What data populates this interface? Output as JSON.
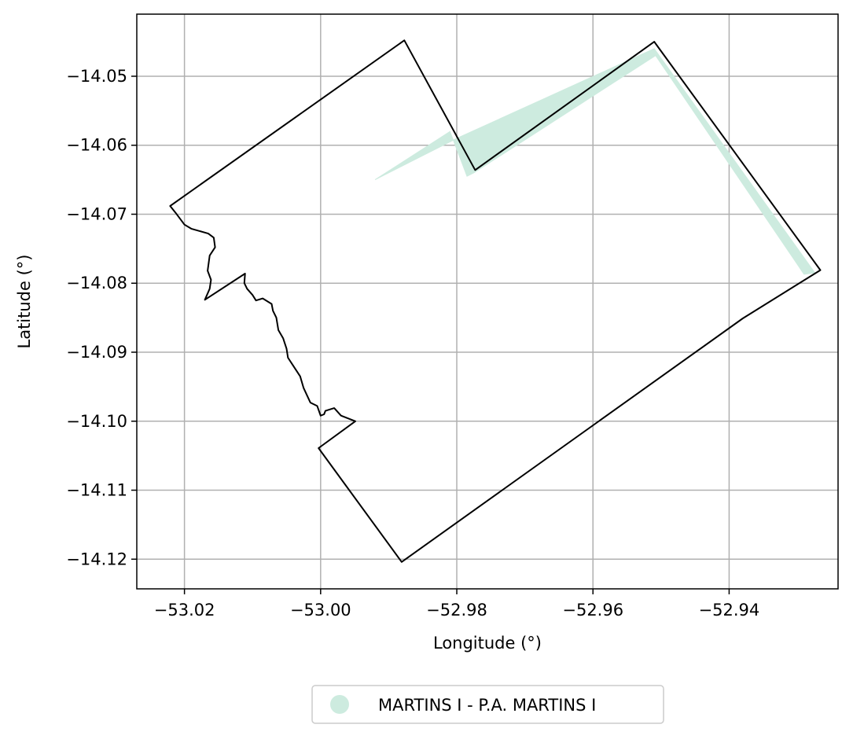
{
  "chart_data": {
    "type": "map",
    "xlabel": "Longitude (°)",
    "ylabel": "Latitude (°)",
    "xlim": [
      -53.027,
      -52.924
    ],
    "ylim": [
      -14.1243,
      -14.041
    ],
    "grid": true,
    "xticks": [
      {
        "value": -53.02,
        "label": "−53.02"
      },
      {
        "value": -53.0,
        "label": "−53.00"
      },
      {
        "value": -52.98,
        "label": "−52.98"
      },
      {
        "value": -52.96,
        "label": "−52.96"
      },
      {
        "value": -52.94,
        "label": "−52.94"
      }
    ],
    "yticks": [
      {
        "value": -14.05,
        "label": "−14.05"
      },
      {
        "value": -14.06,
        "label": "−14.06"
      },
      {
        "value": -14.07,
        "label": "−14.07"
      },
      {
        "value": -14.08,
        "label": "−14.08"
      },
      {
        "value": -14.09,
        "label": "−14.09"
      },
      {
        "value": -14.1,
        "label": "−14.10"
      },
      {
        "value": -14.11,
        "label": "−14.11"
      },
      {
        "value": -14.12,
        "label": "−14.12"
      }
    ],
    "legend": {
      "placement": "bottom-center",
      "entries": [
        {
          "label": "MARTINS I - P.A. MARTINS I",
          "color": "#cdebdf"
        }
      ]
    },
    "outline": {
      "color": "#000000",
      "coordinates": [
        [
          -52.9877,
          -14.0448
        ],
        [
          -52.9773,
          -14.0636
        ],
        [
          -52.951,
          -14.045
        ],
        [
          -52.9266,
          -14.0781
        ],
        [
          -52.938,
          -14.0851
        ],
        [
          -52.9881,
          -14.1204
        ],
        [
          -53.0003,
          -14.1039
        ],
        [
          -52.9949,
          -14.1
        ],
        [
          -52.997,
          -14.0992
        ],
        [
          -52.998,
          -14.0981
        ],
        [
          -52.9993,
          -14.0985
        ],
        [
          -52.9995,
          -14.099
        ],
        [
          -53.0,
          -14.0992
        ],
        [
          -53.0005,
          -14.0978
        ],
        [
          -53.0015,
          -14.0973
        ],
        [
          -53.0025,
          -14.0952
        ],
        [
          -53.003,
          -14.0935
        ],
        [
          -53.004,
          -14.092
        ],
        [
          -53.0048,
          -14.0908
        ],
        [
          -53.005,
          -14.0895
        ],
        [
          -53.0055,
          -14.088
        ],
        [
          -53.0062,
          -14.0868
        ],
        [
          -53.0065,
          -14.085
        ],
        [
          -53.007,
          -14.084
        ],
        [
          -53.0072,
          -14.083
        ],
        [
          -53.0085,
          -14.0822
        ],
        [
          -53.0095,
          -14.0825
        ],
        [
          -53.01,
          -14.0817
        ],
        [
          -53.0108,
          -14.0808
        ],
        [
          -53.0112,
          -14.08
        ],
        [
          -53.0111,
          -14.0786
        ],
        [
          -53.017,
          -14.0824
        ],
        [
          -53.0163,
          -14.0808
        ],
        [
          -53.0161,
          -14.0795
        ],
        [
          -53.0166,
          -14.0782
        ],
        [
          -53.0163,
          -14.076
        ],
        [
          -53.0155,
          -14.0748
        ],
        [
          -53.0157,
          -14.0734
        ],
        [
          -53.0165,
          -14.0728
        ],
        [
          -53.019,
          -14.0721
        ],
        [
          -53.02,
          -14.0715
        ],
        [
          -53.0213,
          -14.0698
        ],
        [
          -53.0221,
          -14.0688
        ]
      ]
    },
    "polygon": {
      "name": "MARTINS I - P.A. MARTINS I",
      "color": "#cdebdf",
      "coordinates": [
        [
          -52.951,
          -14.046
        ],
        [
          -52.9274,
          -14.0785
        ],
        [
          -52.929,
          -14.0787
        ],
        [
          -52.9508,
          -14.047
        ],
        [
          -52.9775,
          -14.064
        ],
        [
          -52.9785,
          -14.0645
        ],
        [
          -52.981,
          -14.058
        ],
        [
          -52.992,
          -14.065
        ],
        [
          -52.98,
          -14.059
        ],
        [
          -52.951,
          -14.046
        ]
      ]
    }
  }
}
